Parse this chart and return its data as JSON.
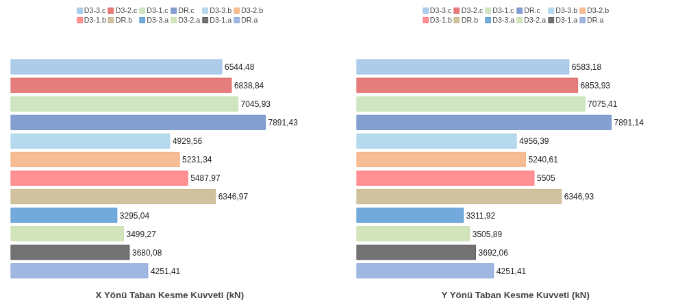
{
  "chart_data": [
    {
      "type": "bar",
      "orientation": "horizontal",
      "stacked": true,
      "xlabel": "X Yönü Taban Kesme Kuvveti (kN)",
      "legend": "top",
      "grid": false,
      "categories": [
        null,
        null,
        null,
        null,
        null,
        null,
        null,
        null,
        null,
        null,
        null,
        null
      ],
      "series": [
        {
          "name": "D3-3.c",
          "color": "#9dc3e6",
          "values": [
            6544.48,
            null,
            null,
            null,
            null,
            null,
            null,
            null,
            null,
            null,
            null,
            null
          ],
          "value_labels": [
            "6544,48",
            null,
            null,
            null,
            null,
            null,
            null,
            null,
            null,
            null,
            null,
            null
          ]
        },
        {
          "name": "D3-2.c",
          "color": "#e06666",
          "values": [
            null,
            6838.84,
            null,
            null,
            null,
            null,
            null,
            null,
            null,
            null,
            null,
            null
          ],
          "value_labels": [
            null,
            "6838,84",
            null,
            null,
            null,
            null,
            null,
            null,
            null,
            null,
            null,
            null
          ]
        },
        {
          "name": "D3-1.c",
          "color": "#c5e0b4",
          "values": [
            null,
            null,
            7045.93,
            null,
            null,
            null,
            null,
            null,
            null,
            null,
            null,
            null
          ],
          "value_labels": [
            null,
            null,
            "7045,93",
            null,
            null,
            null,
            null,
            null,
            null,
            null,
            null,
            null
          ]
        },
        {
          "name": "DR.c",
          "color": "#6f8fc9",
          "values": [
            null,
            null,
            null,
            7891.43,
            null,
            null,
            null,
            null,
            null,
            null,
            null,
            null
          ],
          "value_labels": [
            null,
            null,
            null,
            "7891,43",
            null,
            null,
            null,
            null,
            null,
            null,
            null,
            null
          ]
        },
        {
          "name": "D3-3.b",
          "color": "#a9d3ea",
          "values": [
            null,
            null,
            null,
            null,
            4929.56,
            null,
            null,
            null,
            null,
            null,
            null,
            null
          ],
          "value_labels": [
            null,
            null,
            null,
            null,
            "4929,56",
            null,
            null,
            null,
            null,
            null,
            null,
            null
          ]
        },
        {
          "name": "D3-2.b",
          "color": "#f4b183",
          "values": [
            null,
            null,
            null,
            null,
            null,
            5231.34,
            null,
            null,
            null,
            null,
            null,
            null
          ],
          "value_labels": [
            null,
            null,
            null,
            null,
            null,
            "5231,34",
            null,
            null,
            null,
            null,
            null,
            null
          ]
        },
        {
          "name": "D3-1.b",
          "color": "#ff7c80",
          "values": [
            null,
            null,
            null,
            null,
            null,
            null,
            5487.97,
            null,
            null,
            null,
            null,
            null
          ],
          "value_labels": [
            null,
            null,
            null,
            null,
            null,
            null,
            "5487,97",
            null,
            null,
            null,
            null,
            null
          ]
        },
        {
          "name": "DR.b",
          "color": "#c9b78e",
          "values": [
            null,
            null,
            null,
            null,
            null,
            null,
            null,
            6346.97,
            null,
            null,
            null,
            null
          ],
          "value_labels": [
            null,
            null,
            null,
            null,
            null,
            null,
            null,
            "6346,97",
            null,
            null,
            null,
            null
          ]
        },
        {
          "name": "D3-3.a",
          "color": "#5b9bd5",
          "values": [
            null,
            null,
            null,
            null,
            null,
            null,
            null,
            null,
            3295.04,
            null,
            null,
            null
          ],
          "value_labels": [
            null,
            null,
            null,
            null,
            null,
            null,
            null,
            null,
            "3295,04",
            null,
            null,
            null
          ]
        },
        {
          "name": "D3-2.a",
          "color": "#c9dfb0",
          "values": [
            null,
            null,
            null,
            null,
            null,
            null,
            null,
            null,
            null,
            3499.27,
            null,
            null
          ],
          "value_labels": [
            null,
            null,
            null,
            null,
            null,
            null,
            null,
            null,
            null,
            "3499,27",
            null,
            null
          ]
        },
        {
          "name": "D3-1.a",
          "color": "#595959",
          "values": [
            null,
            null,
            null,
            null,
            null,
            null,
            null,
            null,
            null,
            null,
            3680.08,
            null
          ],
          "value_labels": [
            null,
            null,
            null,
            null,
            null,
            null,
            null,
            null,
            null,
            null,
            "3680,08",
            null
          ]
        },
        {
          "name": "DR.a",
          "color": "#8faadc",
          "values": [
            null,
            null,
            null,
            null,
            null,
            null,
            null,
            null,
            null,
            null,
            null,
            4251.41
          ],
          "value_labels": [
            null,
            null,
            null,
            null,
            null,
            null,
            null,
            null,
            null,
            null,
            null,
            "4251,41"
          ]
        }
      ]
    },
    {
      "type": "bar",
      "orientation": "horizontal",
      "stacked": true,
      "xlabel": "Y Yönü Taban Kesme Kuvveti (kN)",
      "legend": "top",
      "grid": false,
      "categories": [
        null,
        null,
        null,
        null,
        null,
        null,
        null,
        null,
        null,
        null,
        null,
        null
      ],
      "series": [
        {
          "name": "D3-3.c",
          "color": "#9dc3e6",
          "values": [
            6583.18,
            null,
            null,
            null,
            null,
            null,
            null,
            null,
            null,
            null,
            null,
            null
          ],
          "value_labels": [
            "6583,18",
            null,
            null,
            null,
            null,
            null,
            null,
            null,
            null,
            null,
            null,
            null
          ]
        },
        {
          "name": "D3-2.c",
          "color": "#e06666",
          "values": [
            null,
            6853.93,
            null,
            null,
            null,
            null,
            null,
            null,
            null,
            null,
            null,
            null
          ],
          "value_labels": [
            null,
            "6853,93",
            null,
            null,
            null,
            null,
            null,
            null,
            null,
            null,
            null,
            null
          ]
        },
        {
          "name": "D3-1.c",
          "color": "#c5e0b4",
          "values": [
            null,
            null,
            7075.41,
            null,
            null,
            null,
            null,
            null,
            null,
            null,
            null,
            null
          ],
          "value_labels": [
            null,
            null,
            "7075,41",
            null,
            null,
            null,
            null,
            null,
            null,
            null,
            null,
            null
          ]
        },
        {
          "name": "DR.c",
          "color": "#6f8fc9",
          "values": [
            null,
            null,
            null,
            7891.14,
            null,
            null,
            null,
            null,
            null,
            null,
            null,
            null
          ],
          "value_labels": [
            null,
            null,
            null,
            "7891,14",
            null,
            null,
            null,
            null,
            null,
            null,
            null,
            null
          ]
        },
        {
          "name": "D3-3.b",
          "color": "#a9d3ea",
          "values": [
            null,
            null,
            null,
            null,
            4956.39,
            null,
            null,
            null,
            null,
            null,
            null,
            null
          ],
          "value_labels": [
            null,
            null,
            null,
            null,
            "4956,39",
            null,
            null,
            null,
            null,
            null,
            null,
            null
          ]
        },
        {
          "name": "D3-2.b",
          "color": "#f4b183",
          "values": [
            null,
            null,
            null,
            null,
            null,
            5240.61,
            null,
            null,
            null,
            null,
            null,
            null
          ],
          "value_labels": [
            null,
            null,
            null,
            null,
            null,
            "5240,61",
            null,
            null,
            null,
            null,
            null,
            null
          ]
        },
        {
          "name": "D3-1.b",
          "color": "#ff7c80",
          "values": [
            null,
            null,
            null,
            null,
            null,
            null,
            5505,
            null,
            null,
            null,
            null,
            null
          ],
          "value_labels": [
            null,
            null,
            null,
            null,
            null,
            null,
            "5505",
            null,
            null,
            null,
            null,
            null
          ]
        },
        {
          "name": "DR.b",
          "color": "#c9b78e",
          "values": [
            null,
            null,
            null,
            null,
            null,
            null,
            null,
            6346.93,
            null,
            null,
            null,
            null
          ],
          "value_labels": [
            null,
            null,
            null,
            null,
            null,
            null,
            null,
            "6346,93",
            null,
            null,
            null,
            null
          ]
        },
        {
          "name": "D3-3.a",
          "color": "#5b9bd5",
          "values": [
            null,
            null,
            null,
            null,
            null,
            null,
            null,
            null,
            3311.92,
            null,
            null,
            null
          ],
          "value_labels": [
            null,
            null,
            null,
            null,
            null,
            null,
            null,
            null,
            "3311,92",
            null,
            null,
            null
          ]
        },
        {
          "name": "D3-2.a",
          "color": "#c9dfb0",
          "values": [
            null,
            null,
            null,
            null,
            null,
            null,
            null,
            null,
            null,
            3505.89,
            null,
            null
          ],
          "value_labels": [
            null,
            null,
            null,
            null,
            null,
            null,
            null,
            null,
            null,
            "3505,89",
            null,
            null
          ]
        },
        {
          "name": "D3-1.a",
          "color": "#595959",
          "values": [
            null,
            null,
            null,
            null,
            null,
            null,
            null,
            null,
            null,
            null,
            3692.06,
            null
          ],
          "value_labels": [
            null,
            null,
            null,
            null,
            null,
            null,
            null,
            null,
            null,
            null,
            "3692,06",
            null
          ]
        },
        {
          "name": "DR.a",
          "color": "#8faadc",
          "values": [
            null,
            null,
            null,
            null,
            null,
            null,
            null,
            null,
            null,
            null,
            null,
            4251.41
          ],
          "value_labels": [
            null,
            null,
            null,
            null,
            null,
            null,
            null,
            null,
            null,
            null,
            null,
            "4251,41"
          ]
        }
      ]
    }
  ]
}
